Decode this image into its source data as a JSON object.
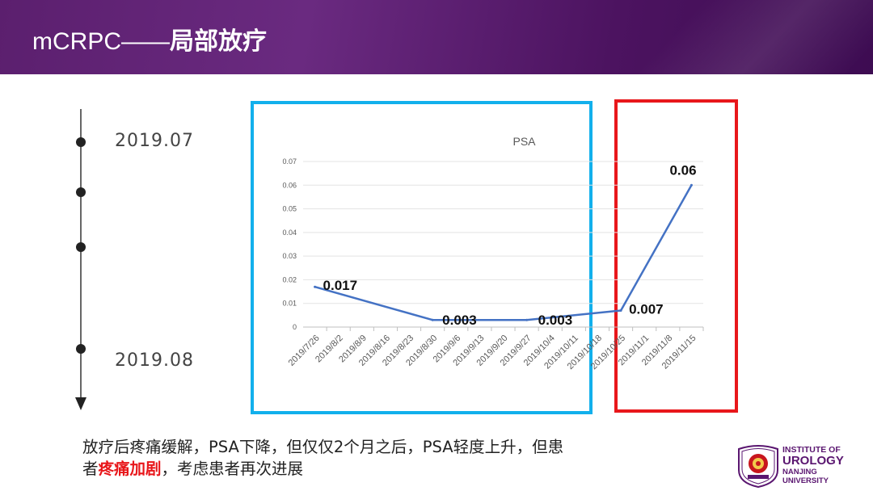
{
  "header": {
    "title_prefix": "mCRPC——",
    "title_main": "局部放疗"
  },
  "timeline": {
    "start_label": "2019.07",
    "end_label": "2019.08"
  },
  "chart_data": {
    "type": "line",
    "title": "PSA",
    "categories": [
      "2019/7/26",
      "2019/8/2",
      "2019/8/9",
      "2019/8/16",
      "2019/8/23",
      "2019/8/30",
      "2019/9/6",
      "2019/9/13",
      "2019/9/20",
      "2019/9/27",
      "2019/10/4",
      "2019/10/11",
      "2019/10/18",
      "2019/10/25",
      "2019/11/1",
      "2019/11/8",
      "2019/11/15"
    ],
    "series": [
      {
        "points": [
          {
            "x": "2019/7/26",
            "y": 0.017
          },
          {
            "x": "2019/8/30",
            "y": 0.003
          },
          {
            "x": "2019/9/27",
            "y": 0.003
          },
          {
            "x": "2019/10/25",
            "y": 0.007
          },
          {
            "x": "2019/11/15",
            "y": 0.06
          }
        ]
      }
    ],
    "data_labels": [
      "0.017",
      "0.003",
      "0.003",
      "0.007",
      "0.06"
    ],
    "ylim": [
      0,
      0.07
    ],
    "yticks": [
      "0",
      "0.01",
      "0.02",
      "0.03",
      "0.04",
      "0.05",
      "0.06",
      "0.07"
    ],
    "grid": true,
    "line_color": "#4472c4"
  },
  "caption": {
    "line1": "放疗后疼痛缓解，PSA下降，但仅仅2个月之后，PSA轻度上升，但患",
    "line2_a": "者",
    "line2_red": "疼痛加剧",
    "line2_b": "，考虑患者再次进展"
  },
  "logo": {
    "line1": "INSTITUTE OF",
    "line2": "UROLOGY",
    "line3": "NANJING",
    "line4": "UNIVERSITY"
  },
  "colors": {
    "header": "#5b1f6e",
    "blue_box": "#12b0ec",
    "red_box": "#e8171b",
    "caption_emphasis": "#e8171b"
  }
}
